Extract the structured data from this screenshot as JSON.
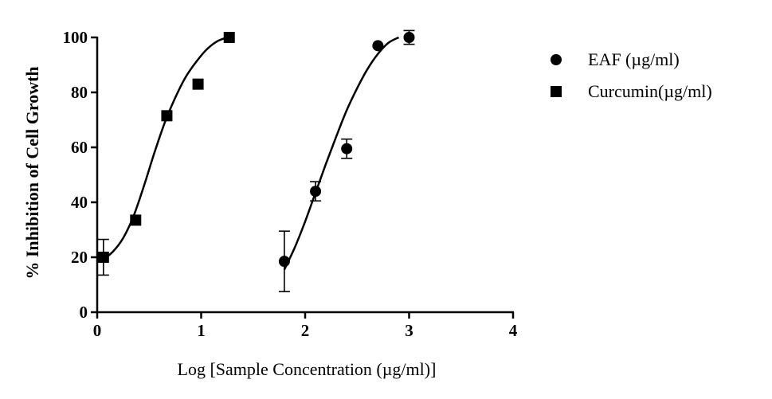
{
  "chart_data": {
    "type": "scatter",
    "title": "",
    "xlabel": "Log [Sample Concentration (µg/ml)]",
    "ylabel": "% Inhibition of Cell Growth",
    "xlim": [
      0,
      4
    ],
    "ylim": [
      0,
      100
    ],
    "x_ticks": [
      "0",
      "1",
      "2",
      "3",
      "4"
    ],
    "y_ticks": [
      "0",
      "20",
      "40",
      "60",
      "80",
      "100"
    ],
    "grid": false,
    "legend_position": "top-right",
    "series": [
      {
        "name": "EAF (µg/ml)",
        "marker": "circle",
        "x": [
          1.8,
          2.1,
          2.4,
          2.7,
          3.0
        ],
        "y": [
          18.5,
          44.0,
          59.5,
          97.0,
          100.0
        ],
        "error": [
          11.0,
          3.5,
          3.5,
          0,
          2.5
        ],
        "fit_curve": {
          "model": "sigmoidal dose-response",
          "x": [
            1.8,
            1.9,
            2.0,
            2.1,
            2.2,
            2.3,
            2.4,
            2.5,
            2.6,
            2.7,
            2.8,
            2.9
          ],
          "y": [
            15.5,
            23.5,
            33.0,
            43.5,
            54.0,
            64.0,
            73.5,
            81.5,
            88.5,
            94.0,
            98.0,
            100.0
          ]
        }
      },
      {
        "name": "Curcumin(µg/ml)",
        "marker": "square",
        "x": [
          0.06,
          0.37,
          0.67,
          0.97,
          1.27
        ],
        "y": [
          20.0,
          33.5,
          71.5,
          83.0,
          100.0
        ],
        "error": [
          6.5,
          0,
          0,
          0,
          0
        ],
        "fit_curve": {
          "model": "sigmoidal dose-response",
          "x": [
            0.05,
            0.15,
            0.25,
            0.35,
            0.45,
            0.55,
            0.65,
            0.75,
            0.85,
            0.95,
            1.05,
            1.15,
            1.25
          ],
          "y": [
            19.0,
            22.0,
            27.0,
            35.0,
            46.0,
            58.0,
            69.0,
            78.0,
            85.5,
            91.0,
            95.5,
            98.5,
            100.0
          ]
        }
      }
    ]
  }
}
